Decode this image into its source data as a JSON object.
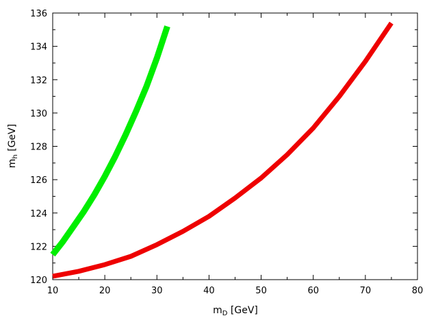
{
  "chart_data": {
    "type": "line",
    "title": "",
    "xlabel": {
      "main": "m",
      "sub": "D",
      "unit": " [GeV]"
    },
    "ylabel": {
      "main": "m",
      "sub": "h",
      "unit": " [GeV]"
    },
    "xlim": [
      10,
      80
    ],
    "ylim": [
      120,
      136
    ],
    "x_ticks": [
      10,
      20,
      30,
      40,
      50,
      60,
      70,
      80
    ],
    "y_ticks": [
      120,
      122,
      124,
      126,
      128,
      130,
      132,
      134,
      136
    ],
    "grid": false,
    "legend": "none",
    "series": [
      {
        "color": "#00ee00",
        "x": [
          10,
          12,
          14,
          16,
          18,
          20,
          22,
          24,
          26,
          28,
          30,
          32
        ],
        "y": [
          121.5,
          122.3,
          123.2,
          124.1,
          125.1,
          126.2,
          127.4,
          128.7,
          130.1,
          131.6,
          133.3,
          135.2
        ]
      },
      {
        "color": "#ee0000",
        "x": [
          10,
          15,
          20,
          25,
          30,
          35,
          40,
          45,
          50,
          55,
          60,
          65,
          70,
          75
        ],
        "y": [
          120.2,
          120.5,
          120.9,
          121.4,
          122.1,
          122.9,
          123.8,
          124.9,
          126.1,
          127.5,
          129.1,
          131.0,
          133.1,
          135.4
        ]
      }
    ]
  }
}
